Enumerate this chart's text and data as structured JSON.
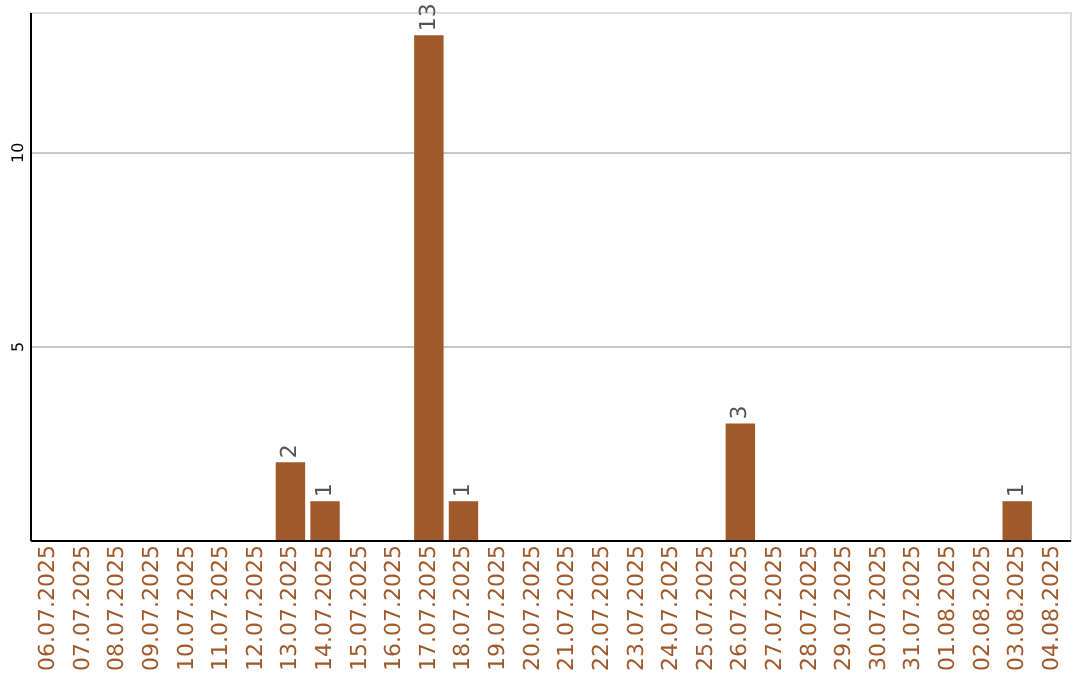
{
  "chart_data": {
    "type": "bar",
    "categories": [
      "06.07.2025",
      "07.07.2025",
      "08.07.2025",
      "09.07.2025",
      "10.07.2025",
      "11.07.2025",
      "12.07.2025",
      "13.07.2025",
      "14.07.2025",
      "15.07.2025",
      "16.07.2025",
      "17.07.2025",
      "18.07.2025",
      "19.07.2025",
      "20.07.2025",
      "21.07.2025",
      "22.07.2025",
      "23.07.2025",
      "24.07.2025",
      "25.07.2025",
      "26.07.2025",
      "27.07.2025",
      "28.07.2025",
      "29.07.2025",
      "30.07.2025",
      "31.07.2025",
      "01.08.2025",
      "02.08.2025",
      "03.08.2025",
      "04.08.2025"
    ],
    "values": [
      0,
      0,
      0,
      0,
      0,
      0,
      0,
      2,
      1,
      0,
      0,
      13,
      1,
      0,
      0,
      0,
      0,
      0,
      0,
      0,
      3,
      0,
      0,
      0,
      0,
      0,
      0,
      0,
      1,
      0
    ],
    "value_labels": [
      null,
      null,
      null,
      null,
      null,
      null,
      null,
      "2",
      "1",
      null,
      null,
      "13",
      "1",
      null,
      null,
      null,
      null,
      null,
      null,
      null,
      "3",
      null,
      null,
      null,
      null,
      null,
      null,
      null,
      "1",
      null
    ],
    "color": "#a0592b",
    "ylim": [
      0,
      13.6
    ],
    "yticks": [
      5,
      10
    ],
    "grid": "y"
  }
}
